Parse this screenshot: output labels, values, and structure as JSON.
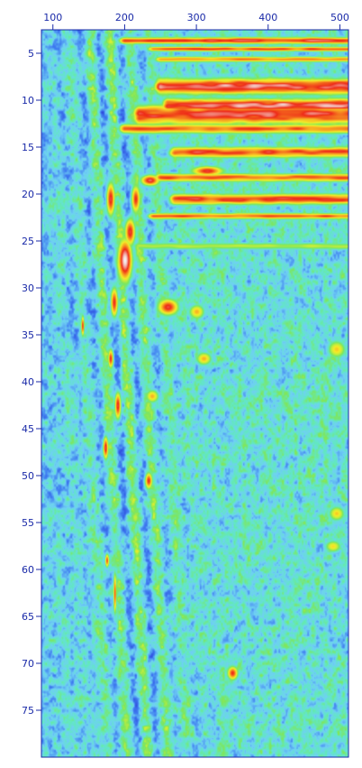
{
  "chart_data": {
    "type": "heatmap",
    "title": "",
    "xlabel": "",
    "ylabel": "",
    "x_axis_position": "top",
    "y_axis_position": "left",
    "grid": false,
    "legend": "none",
    "xlim": [
      84,
      512
    ],
    "ylim": [
      2.5,
      80
    ],
    "x_ticks": [
      100,
      200,
      300,
      400,
      500
    ],
    "y_ticks": [
      5,
      10,
      15,
      20,
      25,
      30,
      35,
      40,
      45,
      50,
      55,
      60,
      65,
      70,
      75
    ],
    "colormap": [
      "#2b3bd6",
      "#3f7cf0",
      "#6fd0f4",
      "#62e8c2",
      "#7ee65c",
      "#c8ee3a",
      "#f6ea28",
      "#f79a22",
      "#ee2a18",
      "#f5f5f5"
    ],
    "colormap_note_levels": [
      0,
      0.15,
      0.28,
      0.38,
      0.5,
      0.6,
      0.68,
      0.78,
      0.88,
      1.0
    ],
    "features": [
      {
        "kind": "band",
        "y": 3.6,
        "x_from": 200,
        "x_to": 512,
        "value": 0.95,
        "dy": 0.5
      },
      {
        "kind": "band",
        "y": 4.5,
        "x_from": 240,
        "x_to": 512,
        "value": 0.9,
        "dy": 0.35
      },
      {
        "kind": "band",
        "y": 5.6,
        "x_from": 250,
        "x_to": 512,
        "value": 0.85,
        "dy": 0.4
      },
      {
        "kind": "band",
        "y": 8.5,
        "x_from": 250,
        "x_to": 512,
        "value": 1.0,
        "dy": 1.2
      },
      {
        "kind": "band",
        "y": 10.5,
        "x_from": 260,
        "x_to": 512,
        "value": 1.0,
        "dy": 1.0
      },
      {
        "kind": "band",
        "y": 11.5,
        "x_from": 220,
        "x_to": 320,
        "value": 0.95,
        "dy": 1.5
      },
      {
        "kind": "band",
        "y": 13.0,
        "x_from": 200,
        "x_to": 512,
        "value": 0.88,
        "dy": 0.7
      },
      {
        "kind": "band",
        "y": 15.5,
        "x_from": 270,
        "x_to": 512,
        "value": 0.92,
        "dy": 0.8
      },
      {
        "kind": "band",
        "y": 18.2,
        "x_from": 250,
        "x_to": 512,
        "value": 0.9,
        "dy": 0.6
      },
      {
        "kind": "band",
        "y": 20.5,
        "x_from": 270,
        "x_to": 512,
        "value": 0.93,
        "dy": 0.8
      },
      {
        "kind": "band",
        "y": 22.3,
        "x_from": 240,
        "x_to": 512,
        "value": 0.88,
        "dy": 0.45
      },
      {
        "kind": "band",
        "y": 25.5,
        "x_from": 220,
        "x_to": 512,
        "value": 0.62,
        "dy": 0.5
      },
      {
        "kind": "blob",
        "x": 235,
        "y": 18.5,
        "value": 0.92,
        "rx": 18,
        "ry": 0.8
      },
      {
        "kind": "blob",
        "x": 315,
        "y": 17.5,
        "value": 0.9,
        "rx": 30,
        "ry": 0.7
      },
      {
        "kind": "blob",
        "x": 215,
        "y": 20.5,
        "value": 0.88,
        "rx": 8,
        "ry": 2.0
      },
      {
        "kind": "blob",
        "x": 180,
        "y": 20.5,
        "value": 0.9,
        "rx": 8,
        "ry": 2.5
      },
      {
        "kind": "blob",
        "x": 200,
        "y": 27.0,
        "value": 1.0,
        "rx": 14,
        "ry": 3.2
      },
      {
        "kind": "blob",
        "x": 207,
        "y": 24.0,
        "value": 0.9,
        "rx": 10,
        "ry": 2.0
      },
      {
        "kind": "blob",
        "x": 185,
        "y": 31.5,
        "value": 0.88,
        "rx": 7,
        "ry": 2.2
      },
      {
        "kind": "blob",
        "x": 260,
        "y": 32.0,
        "value": 0.9,
        "rx": 20,
        "ry": 1.2
      },
      {
        "kind": "blob",
        "x": 300,
        "y": 32.5,
        "value": 0.75,
        "rx": 14,
        "ry": 1.0
      },
      {
        "kind": "blob",
        "x": 141,
        "y": 34.0,
        "value": 0.88,
        "rx": 3,
        "ry": 1.5
      },
      {
        "kind": "blob",
        "x": 180,
        "y": 37.5,
        "value": 0.88,
        "rx": 5,
        "ry": 1.4
      },
      {
        "kind": "blob",
        "x": 310,
        "y": 37.5,
        "value": 0.75,
        "rx": 14,
        "ry": 0.9
      },
      {
        "kind": "blob",
        "x": 190,
        "y": 42.5,
        "value": 0.9,
        "rx": 6,
        "ry": 2.0
      },
      {
        "kind": "blob",
        "x": 238,
        "y": 41.5,
        "value": 0.75,
        "rx": 12,
        "ry": 0.9
      },
      {
        "kind": "blob",
        "x": 173,
        "y": 47.0,
        "value": 0.9,
        "rx": 5,
        "ry": 1.7
      },
      {
        "kind": "blob",
        "x": 233,
        "y": 50.5,
        "value": 0.88,
        "rx": 7,
        "ry": 1.2
      },
      {
        "kind": "blob",
        "x": 175,
        "y": 59.0,
        "value": 0.85,
        "rx": 4,
        "ry": 1.0
      },
      {
        "kind": "blob",
        "x": 186,
        "y": 62.5,
        "value": 0.85,
        "rx": 3,
        "ry": 3.0
      },
      {
        "kind": "blob",
        "x": 350,
        "y": 71.0,
        "value": 0.88,
        "rx": 10,
        "ry": 1.0
      },
      {
        "kind": "blob",
        "x": 495,
        "y": 36.5,
        "value": 0.72,
        "rx": 16,
        "ry": 1.2
      },
      {
        "kind": "blob",
        "x": 495,
        "y": 54.0,
        "value": 0.72,
        "rx": 14,
        "ry": 1.0
      },
      {
        "kind": "blob",
        "x": 490,
        "y": 57.5,
        "value": 0.7,
        "rx": 14,
        "ry": 0.8
      }
    ]
  }
}
